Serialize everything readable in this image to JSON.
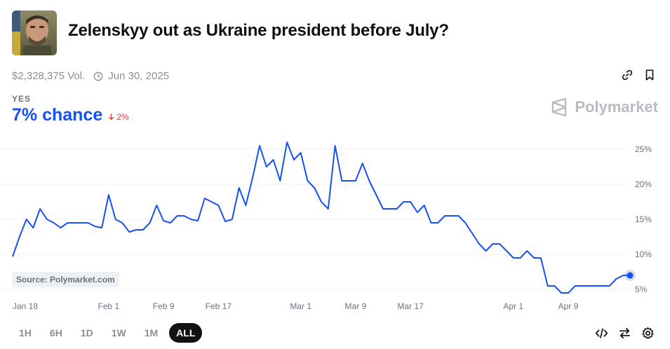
{
  "header": {
    "title": "Zelenskyy out as Ukraine president before July?",
    "thumbnail_icon": "zelenskyy-portrait-icon"
  },
  "meta": {
    "volume": "$2,328,375 Vol.",
    "end_date": "Jun 30, 2025"
  },
  "outcome": {
    "label": "YES",
    "chance": "7% chance",
    "delta": "2%",
    "delta_color": "#e23939"
  },
  "brand": {
    "name": "Polymarket"
  },
  "source_label": "Source: Polymarket.com",
  "time_ranges": [
    {
      "label": "1H",
      "active": false
    },
    {
      "label": "6H",
      "active": false
    },
    {
      "label": "1D",
      "active": false
    },
    {
      "label": "1W",
      "active": false
    },
    {
      "label": "1M",
      "active": false
    },
    {
      "label": "ALL",
      "active": true
    }
  ],
  "colors": {
    "line": "#1652f0",
    "grid": "#eef0f3",
    "axis_text": "#6b7280"
  },
  "chart_data": {
    "type": "line",
    "title": "",
    "xlabel": "",
    "ylabel": "",
    "ylim": [
      5,
      26
    ],
    "grid": true,
    "y_ticks": [
      5,
      10,
      15,
      20,
      25
    ],
    "y_tick_labels": [
      "5%",
      "10%",
      "15%",
      "20%",
      "25%"
    ],
    "x_ticks": [
      "2025-01-18",
      "2025-02-01",
      "2025-02-09",
      "2025-02-17",
      "2025-03-01",
      "2025-03-09",
      "2025-03-17",
      "2025-04-01",
      "2025-04-09"
    ],
    "x_tick_labels": [
      "Jan 18",
      "Feb 1",
      "Feb 9",
      "Feb 17",
      "Mar 1",
      "Mar 9",
      "Mar 17",
      "Apr 1",
      "Apr 9"
    ],
    "series": [
      {
        "x": [
          "2025-01-18",
          "2025-01-19",
          "2025-01-20",
          "2025-01-21",
          "2025-01-22",
          "2025-01-23",
          "2025-01-24",
          "2025-01-25",
          "2025-01-26",
          "2025-01-27",
          "2025-01-29",
          "2025-01-30",
          "2025-01-31",
          "2025-02-01",
          "2025-02-02",
          "2025-02-03",
          "2025-02-04",
          "2025-02-05",
          "2025-02-06",
          "2025-02-07",
          "2025-02-08",
          "2025-02-09",
          "2025-02-10",
          "2025-02-11",
          "2025-02-12",
          "2025-02-13",
          "2025-02-14",
          "2025-02-15",
          "2025-02-16",
          "2025-02-17",
          "2025-02-18",
          "2025-02-19",
          "2025-02-20",
          "2025-02-21",
          "2025-02-22",
          "2025-02-23",
          "2025-02-24",
          "2025-02-25",
          "2025-02-26",
          "2025-02-27",
          "2025-02-28",
          "2025-03-01",
          "2025-03-02",
          "2025-03-03",
          "2025-03-04",
          "2025-03-05",
          "2025-03-06",
          "2025-03-07",
          "2025-03-08",
          "2025-03-09",
          "2025-03-10",
          "2025-03-11",
          "2025-03-12",
          "2025-03-13",
          "2025-03-14",
          "2025-03-15",
          "2025-03-16",
          "2025-03-17",
          "2025-03-18",
          "2025-03-19",
          "2025-03-20",
          "2025-03-21",
          "2025-03-22",
          "2025-03-23",
          "2025-03-24",
          "2025-03-25",
          "2025-03-26",
          "2025-03-27",
          "2025-03-28",
          "2025-03-29",
          "2025-03-30",
          "2025-03-31",
          "2025-04-01",
          "2025-04-02",
          "2025-04-03",
          "2025-04-04",
          "2025-04-05",
          "2025-04-06",
          "2025-04-07",
          "2025-04-08",
          "2025-04-09",
          "2025-04-10",
          "2025-04-11",
          "2025-04-12",
          "2025-04-13",
          "2025-04-14",
          "2025-04-15",
          "2025-04-16",
          "2025-04-17",
          "2025-04-18"
        ],
        "y": [
          9.7,
          12.5,
          15,
          13.8,
          16.5,
          15,
          14.5,
          13.8,
          14.5,
          14.5,
          14.5,
          14,
          13.8,
          18.5,
          15,
          14.5,
          13.2,
          13.5,
          13.5,
          14.5,
          17,
          14.8,
          14.5,
          15.5,
          15.5,
          15,
          14.8,
          18,
          17.5,
          17,
          14.7,
          15,
          19.5,
          17,
          21,
          25.5,
          22.5,
          23.5,
          20.5,
          26,
          23.5,
          24.5,
          20.5,
          19.5,
          17.5,
          16.5,
          25.5,
          20.5,
          20.5,
          20.5,
          23,
          20.5,
          18.5,
          16.5,
          16.5,
          16.5,
          17.5,
          17.5,
          16,
          17,
          14.5,
          14.5,
          15.5,
          15.5,
          15.5,
          14.5,
          13,
          11.5,
          10.5,
          11.5,
          11.5,
          10.5,
          9.5,
          9.5,
          10.5,
          9.5,
          9.5,
          5.5,
          5.5,
          4.5,
          4.5,
          5.5,
          5.5,
          5.5,
          5.5,
          5.5,
          5.5,
          6.5,
          7,
          7
        ]
      }
    ]
  }
}
